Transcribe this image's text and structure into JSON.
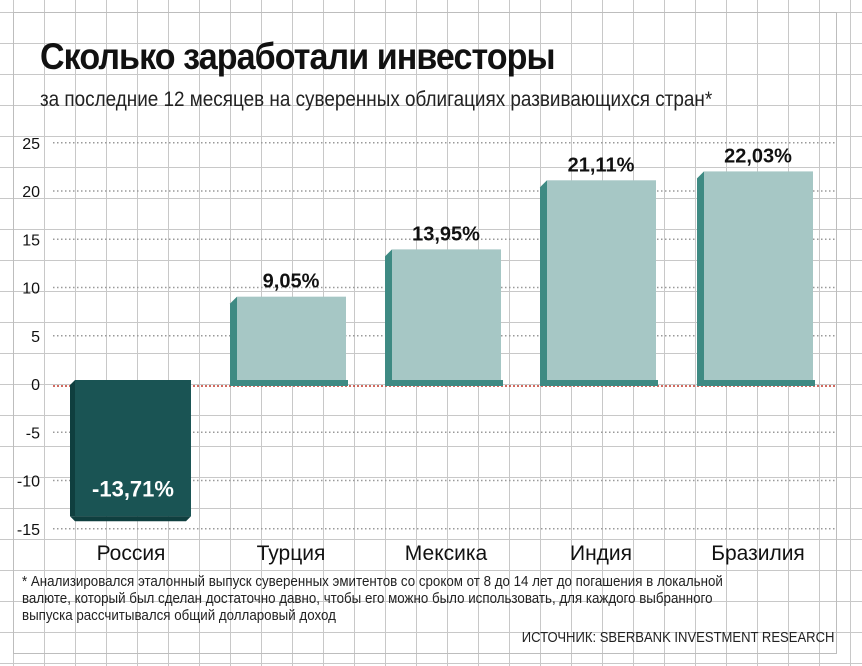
{
  "title": "Сколько заработали инвесторы",
  "subtitle": "за последние 12 месяцев на суверенных облигациях развивающихся стран*",
  "footnote": "* Анализировался эталонный выпуск суверенных эмитентов со сроком от 8 до 14 лет до погашения в локальной валюте, который был сделан достаточно давно, чтобы его можно было использовать, для каждого выбранного выпуска рассчитывался общий долларовый доход",
  "source": "ИСТОЧНИК: SBERBANK INVESTMENT RESEARCH",
  "colors": {
    "negative": "#1a5454",
    "negative_side": "#0f3f3f",
    "positive": "#a6c7c5",
    "positive_side": "#3e8a83",
    "zero_line": "#c0392b"
  },
  "chart_data": {
    "type": "bar",
    "title": "Сколько заработали инвесторы",
    "categories": [
      "Россия",
      "Турция",
      "Мексика",
      "Индия",
      "Бразилия"
    ],
    "values": [
      -13.71,
      9.05,
      13.95,
      21.11,
      22.03
    ],
    "data_labels": [
      "-13,71%",
      "9,05%",
      "13,95%",
      "21,11%",
      "22,03%"
    ],
    "yticks": [
      25,
      20,
      15,
      10,
      5,
      0,
      -5,
      -10,
      -15
    ],
    "ylim": [
      -15,
      25
    ],
    "xlabel": "",
    "ylabel": "",
    "grid": true
  }
}
